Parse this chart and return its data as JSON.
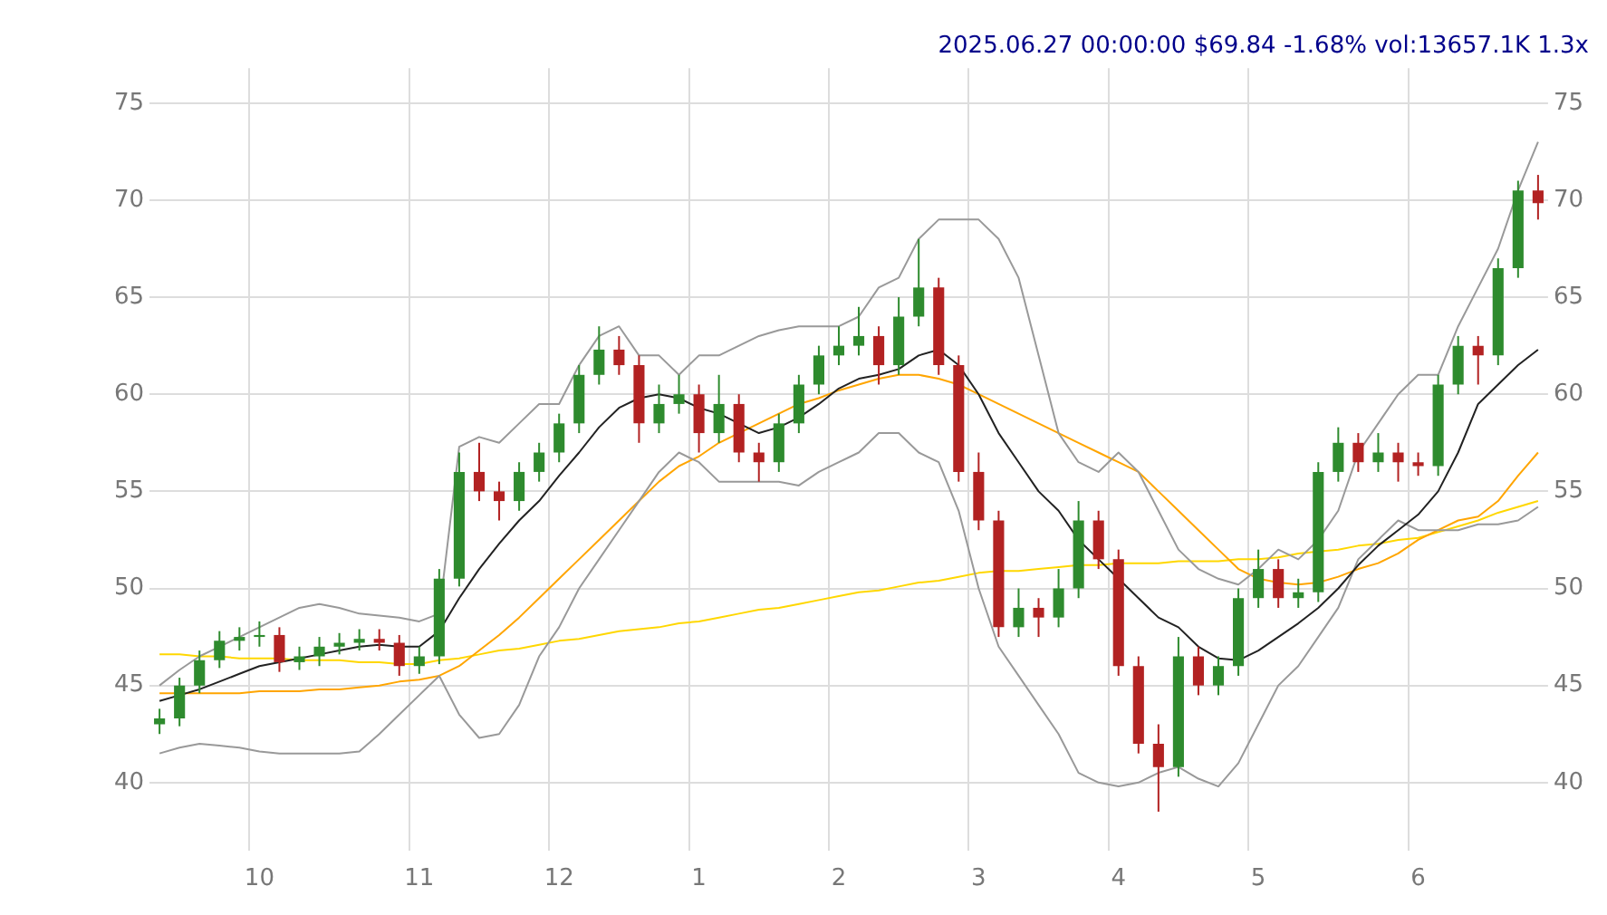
{
  "chart_data": {
    "type": "candlestick",
    "title": "2025.06.27 00:00:00 $69.84 -1.68% vol:13657.1K 1.3x",
    "categories": [
      null,
      null,
      null,
      null,
      null,
      "10",
      null,
      null,
      null,
      null,
      null,
      null,
      null,
      "11",
      null,
      null,
      null,
      null,
      null,
      null,
      "12",
      null,
      null,
      null,
      null,
      null,
      null,
      "1",
      null,
      null,
      null,
      null,
      null,
      null,
      "2",
      null,
      null,
      null,
      null,
      null,
      null,
      "3",
      null,
      null,
      null,
      null,
      null,
      null,
      "4",
      null,
      null,
      null,
      null,
      null,
      null,
      "5",
      null,
      null,
      null,
      null,
      null,
      null,
      null,
      "6",
      null,
      null,
      null,
      null,
      null,
      null
    ],
    "ohlc": [
      [
        43,
        43.8,
        42.5,
        43.3
      ],
      [
        43.3,
        45.4,
        42.9,
        45
      ],
      [
        45,
        46.8,
        44.6,
        46.3
      ],
      [
        46.3,
        47.8,
        45.9,
        47.3
      ],
      [
        47.3,
        48,
        46.8,
        47.5
      ],
      [
        47.5,
        48.3,
        47,
        47.6
      ],
      [
        47.6,
        48,
        45.7,
        46.2
      ],
      [
        46.2,
        47,
        45.8,
        46.5
      ],
      [
        46.5,
        47.5,
        46,
        47
      ],
      [
        47,
        47.7,
        46.6,
        47.2
      ],
      [
        47.2,
        47.9,
        46.8,
        47.4
      ],
      [
        47.4,
        47.9,
        46.8,
        47.2
      ],
      [
        47.2,
        47.6,
        45.5,
        46
      ],
      [
        46,
        47,
        45.6,
        46.5
      ],
      [
        46.5,
        51,
        46.1,
        50.5
      ],
      [
        50.5,
        57,
        50.1,
        56
      ],
      [
        56,
        57.5,
        54.5,
        55
      ],
      [
        55,
        55.5,
        53.5,
        54.5
      ],
      [
        54.5,
        56.5,
        54,
        56
      ],
      [
        56,
        57.5,
        55.5,
        57
      ],
      [
        57,
        59,
        56.5,
        58.5
      ],
      [
        58.5,
        61.5,
        58,
        61
      ],
      [
        61,
        63.5,
        60.5,
        62.3
      ],
      [
        62.3,
        63,
        61,
        61.5
      ],
      [
        61.5,
        62,
        57.5,
        58.5
      ],
      [
        58.5,
        60.5,
        58,
        59.5
      ],
      [
        59.5,
        61,
        59,
        60
      ],
      [
        60,
        60.5,
        57,
        58
      ],
      [
        58,
        61,
        57.5,
        59.5
      ],
      [
        59.5,
        60,
        56.5,
        57
      ],
      [
        57,
        57.5,
        55.5,
        56.5
      ],
      [
        56.5,
        59,
        56,
        58.5
      ],
      [
        58.5,
        61,
        58,
        60.5
      ],
      [
        60.5,
        62.5,
        60,
        62
      ],
      [
        62,
        63.5,
        61.5,
        62.5
      ],
      [
        62.5,
        64.5,
        62,
        63
      ],
      [
        63,
        63.5,
        60.5,
        61.5
      ],
      [
        61.5,
        65,
        61,
        64
      ],
      [
        64,
        68,
        63.5,
        65.5
      ],
      [
        65.5,
        66,
        61,
        61.5
      ],
      [
        61.5,
        62,
        55.5,
        56
      ],
      [
        56,
        57,
        53,
        53.5
      ],
      [
        53.5,
        54,
        47.5,
        48
      ],
      [
        48,
        50,
        47.5,
        49
      ],
      [
        49,
        49.5,
        47.5,
        48.5
      ],
      [
        48.5,
        51,
        48,
        50
      ],
      [
        50,
        54.5,
        49.5,
        53.5
      ],
      [
        53.5,
        54,
        51,
        51.5
      ],
      [
        51.5,
        52,
        45.5,
        46
      ],
      [
        46,
        46.5,
        41.5,
        42
      ],
      [
        42,
        43,
        38.5,
        40.8
      ],
      [
        40.8,
        47.5,
        40.3,
        46.5
      ],
      [
        46.5,
        47,
        44.5,
        45
      ],
      [
        45,
        46.5,
        44.5,
        46
      ],
      [
        46,
        50,
        45.5,
        49.5
      ],
      [
        49.5,
        52,
        49,
        51
      ],
      [
        51,
        51.5,
        49,
        49.5
      ],
      [
        49.5,
        50.5,
        49,
        49.8
      ],
      [
        49.8,
        56.5,
        49.3,
        56
      ],
      [
        56,
        58.3,
        55.5,
        57.5
      ],
      [
        57.5,
        58,
        56,
        56.5
      ],
      [
        56.5,
        58,
        56,
        57
      ],
      [
        57,
        57.5,
        55.5,
        56.5
      ],
      [
        56.5,
        57,
        55.8,
        56.3
      ],
      [
        56.3,
        61,
        55.8,
        60.5
      ],
      [
        60.5,
        63,
        60,
        62.5
      ],
      [
        62.5,
        63,
        60.5,
        62
      ],
      [
        62,
        67,
        61.5,
        66.5
      ],
      [
        66.5,
        71,
        66,
        70.5
      ],
      [
        70.5,
        71.3,
        69,
        69.84
      ]
    ],
    "colors": [
      "#2e8b2e",
      "#2e8b2e",
      "#2e8b2e",
      "#2e8b2e",
      "#2e8b2e",
      "#2e8b2e",
      "#b22222",
      "#2e8b2e",
      "#2e8b2e",
      "#2e8b2e",
      "#2e8b2e",
      "#b22222",
      "#b22222",
      "#2e8b2e",
      "#2e8b2e",
      "#2e8b2e",
      "#b22222",
      "#b22222",
      "#2e8b2e",
      "#2e8b2e",
      "#2e8b2e",
      "#2e8b2e",
      "#2e8b2e",
      "#b22222",
      "#b22222",
      "#2e8b2e",
      "#2e8b2e",
      "#b22222",
      "#2e8b2e",
      "#b22222",
      "#b22222",
      "#2e8b2e",
      "#2e8b2e",
      "#2e8b2e",
      "#2e8b2e",
      "#2e8b2e",
      "#b22222",
      "#2e8b2e",
      "#2e8b2e",
      "#b22222",
      "#b22222",
      "#b22222",
      "#b22222",
      "#2e8b2e",
      "#b22222",
      "#2e8b2e",
      "#2e8b2e",
      "#b22222",
      "#b22222",
      "#b22222",
      "#b22222",
      "#2e8b2e",
      "#b22222",
      "#2e8b2e",
      "#2e8b2e",
      "#2e8b2e",
      "#b22222",
      "#2e8b2e",
      "#2e8b2e",
      "#2e8b2e",
      "#b22222",
      "#2e8b2e",
      "#b22222",
      "#b22222",
      "#2e8b2e",
      "#2e8b2e",
      "#b22222",
      "#2e8b2e",
      "#2e8b2e",
      "#b22222"
    ],
    "series": [
      {
        "type": "line",
        "color": "#222222",
        "values": [
          44.2,
          44.5,
          44.8,
          45.2,
          45.6,
          46,
          46.2,
          46.4,
          46.6,
          46.8,
          47,
          47.1,
          47,
          47,
          47.8,
          49.5,
          51,
          52.3,
          53.5,
          54.5,
          55.8,
          57,
          58.3,
          59.3,
          59.8,
          60,
          59.8,
          59.3,
          59,
          58.5,
          58,
          58.3,
          58.8,
          59.5,
          60.3,
          60.8,
          61,
          61.3,
          62,
          62.3,
          61.5,
          60,
          58,
          56.5,
          55,
          54,
          52.5,
          51.5,
          50.5,
          49.5,
          48.5,
          48,
          47,
          46.4,
          46.3,
          46.8,
          47.5,
          48.2,
          49,
          50,
          51.2,
          52.2,
          53,
          53.8,
          55,
          57,
          59.5,
          60.5,
          61.5,
          62.3
        ]
      },
      {
        "type": "line",
        "color": "#999999",
        "values": [
          45,
          45.8,
          46.5,
          47,
          47.5,
          48,
          48.5,
          49,
          49.2,
          49,
          48.7,
          48.6,
          48.5,
          48.3,
          48.7,
          57.3,
          57.8,
          57.5,
          58.5,
          59.5,
          59.5,
          61.5,
          63,
          63.5,
          62,
          62,
          61,
          62,
          62,
          62.5,
          63,
          63.3,
          63.5,
          63.5,
          63.5,
          64,
          65.5,
          66,
          68,
          69,
          69,
          69,
          68,
          66,
          62,
          58,
          56.5,
          56,
          57,
          56,
          54,
          52,
          51,
          50.5,
          50.2,
          51,
          52,
          51.5,
          52.5,
          54,
          57,
          58.5,
          60,
          61,
          61,
          63.5,
          65.5,
          67.5,
          70.5,
          73
        ]
      },
      {
        "type": "line",
        "color": "#999999",
        "values": [
          41.5,
          41.8,
          42,
          41.9,
          41.8,
          41.6,
          41.5,
          41.5,
          41.5,
          41.5,
          41.6,
          42.5,
          43.5,
          44.5,
          45.5,
          43.5,
          42.3,
          42.5,
          44,
          46.5,
          48,
          50,
          51.5,
          53,
          54.5,
          56,
          57,
          56.5,
          55.5,
          55.5,
          55.5,
          55.5,
          55.3,
          56,
          56.5,
          57,
          58,
          58,
          57,
          56.5,
          54,
          50,
          47,
          45.5,
          44,
          42.5,
          40.5,
          40,
          39.8,
          40,
          40.5,
          40.8,
          40.2,
          39.8,
          41,
          43,
          45,
          46,
          47.5,
          49,
          51.5,
          52.5,
          53.5,
          53,
          53,
          53,
          53.3,
          53.3,
          53.5,
          54.2
        ]
      },
      {
        "type": "line",
        "color": "#ffa500",
        "values": [
          44.6,
          44.6,
          44.6,
          44.6,
          44.6,
          44.7,
          44.7,
          44.7,
          44.8,
          44.8,
          44.9,
          45,
          45.2,
          45.3,
          45.5,
          46,
          46.8,
          47.6,
          48.5,
          49.5,
          50.5,
          51.5,
          52.5,
          53.5,
          54.5,
          55.5,
          56.3,
          56.8,
          57.5,
          58,
          58.5,
          59,
          59.5,
          59.8,
          60.2,
          60.5,
          60.8,
          61,
          61,
          60.8,
          60.5,
          60,
          59.5,
          59,
          58.5,
          58,
          57.5,
          57,
          56.5,
          56,
          55,
          54,
          53,
          52,
          51,
          50.5,
          50.3,
          50.2,
          50.3,
          50.6,
          51,
          51.3,
          51.8,
          52.5,
          53,
          53.5,
          53.7,
          54.5,
          55.8,
          57
        ]
      },
      {
        "type": "line",
        "color": "#ffd700",
        "values": [
          46.6,
          46.6,
          46.5,
          46.5,
          46.4,
          46.4,
          46.4,
          46.3,
          46.3,
          46.3,
          46.2,
          46.2,
          46.1,
          46.1,
          46.3,
          46.4,
          46.6,
          46.8,
          46.9,
          47.1,
          47.3,
          47.4,
          47.6,
          47.8,
          47.9,
          48,
          48.2,
          48.3,
          48.5,
          48.7,
          48.9,
          49,
          49.2,
          49.4,
          49.6,
          49.8,
          49.9,
          50.1,
          50.3,
          50.4,
          50.6,
          50.8,
          50.9,
          50.9,
          51,
          51.1,
          51.2,
          51.2,
          51.3,
          51.3,
          51.3,
          51.4,
          51.4,
          51.4,
          51.5,
          51.5,
          51.6,
          51.8,
          51.9,
          52,
          52.2,
          52.3,
          52.5,
          52.6,
          52.9,
          53.2,
          53.5,
          53.9,
          54.2,
          54.5
        ]
      }
    ],
    "ylim": [
      36.5,
      76.8
    ],
    "yticks": [
      40,
      45,
      50,
      55,
      60,
      65,
      70,
      75
    ],
    "y2lim": [
      36.5,
      76.8
    ],
    "y2ticks": [
      40,
      45,
      50,
      55,
      60,
      65,
      70,
      75
    ],
    "grid": true,
    "marker": "none"
  }
}
